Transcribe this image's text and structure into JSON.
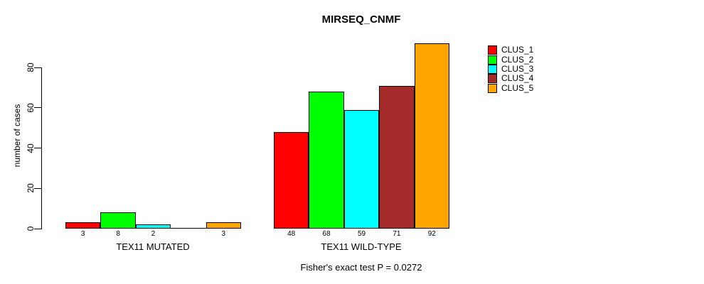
{
  "chart_data": {
    "type": "bar",
    "title": "MIRSEQ_CNMF",
    "subtitle": "Fisher's exact test P = 0.0272",
    "ylabel": "number of cases",
    "yticks": [
      0,
      20,
      40,
      60,
      80
    ],
    "ylim": [
      0,
      95
    ],
    "grid": false,
    "legend_position": "right",
    "categories": [
      "TEX11 MUTATED",
      "TEX11 WILD-TYPE"
    ],
    "series": [
      {
        "name": "CLUS_1",
        "color": "#FF0000",
        "values": [
          3,
          48
        ]
      },
      {
        "name": "CLUS_2",
        "color": "#00FF00",
        "values": [
          8,
          68
        ]
      },
      {
        "name": "CLUS_3",
        "color": "#00FFFF",
        "values": [
          2,
          59
        ]
      },
      {
        "name": "CLUS_4",
        "color": "#A52A2A",
        "values": [
          0,
          71
        ]
      },
      {
        "name": "CLUS_5",
        "color": "#FFA500",
        "values": [
          3,
          92
        ]
      }
    ],
    "bar_value_labels": [
      [
        "3",
        "8",
        "2",
        "",
        "3"
      ],
      [
        "48",
        "68",
        "59",
        "71",
        "92"
      ]
    ],
    "axis_color": "#000000",
    "background_color": "#FFFFFF"
  }
}
